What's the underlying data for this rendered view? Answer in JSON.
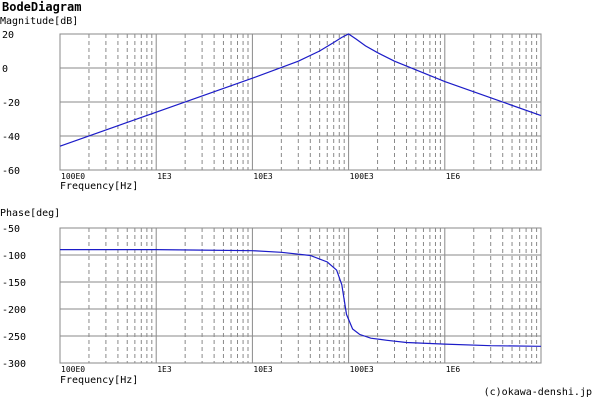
{
  "page": {
    "title": "BodeDiagram",
    "credit": "(c)okawa-denshi.jp"
  },
  "chart_data": [
    {
      "type": "line",
      "id": "magnitude",
      "ylabel": "Magnitude[dB]",
      "xlabel": "Frequency[Hz]",
      "xscale": "log",
      "xlim": [
        100,
        10000000
      ],
      "ylim": [
        -60,
        20
      ],
      "grid": true,
      "yticks": [
        20,
        0,
        -20,
        -40,
        -60
      ],
      "ytick_labels": [
        "20",
        "0",
        "-20",
        "-40",
        "-60"
      ],
      "xticks": [
        100,
        1000,
        10000,
        100000,
        1000000
      ],
      "xtick_labels": [
        "100E0",
        "1E3",
        "10E3",
        "100E3",
        "1E6"
      ],
      "line_color": "#1c1cc8",
      "series": [
        {
          "x": [
            100,
            1000,
            10000,
            30000,
            50000,
            70000,
            85000,
            100000,
            120000,
            150000,
            200000,
            300000,
            1000000,
            10000000
          ],
          "y": [
            -46,
            -26,
            -6,
            4,
            10,
            15,
            18,
            20,
            17,
            13,
            9,
            4,
            -8,
            -28
          ]
        }
      ]
    },
    {
      "type": "line",
      "id": "phase",
      "ylabel": "Phase[deg]",
      "xlabel": "Frequency[Hz]",
      "xscale": "log",
      "xlim": [
        100,
        10000000
      ],
      "ylim": [
        -300,
        -50
      ],
      "grid": true,
      "yticks": [
        -50,
        -100,
        -150,
        -200,
        -250,
        -300
      ],
      "ytick_labels": [
        "-50",
        "-100",
        "-150",
        "-200",
        "-250",
        "-300"
      ],
      "xticks": [
        100,
        1000,
        10000,
        100000,
        1000000
      ],
      "xtick_labels": [
        "100E0",
        "1E3",
        "10E3",
        "100E3",
        "1E6"
      ],
      "line_color": "#1c1cc8",
      "series": [
        {
          "x": [
            100,
            1000,
            3000,
            10000,
            20000,
            40000,
            60000,
            75000,
            85000,
            95000,
            110000,
            130000,
            170000,
            250000,
            400000,
            1000000,
            3000000,
            10000000
          ],
          "y": [
            -90,
            -90,
            -91,
            -92,
            -95,
            -101,
            -113,
            -128,
            -155,
            -210,
            -237,
            -247,
            -254,
            -258,
            -262,
            -265,
            -268,
            -269
          ]
        }
      ]
    }
  ]
}
